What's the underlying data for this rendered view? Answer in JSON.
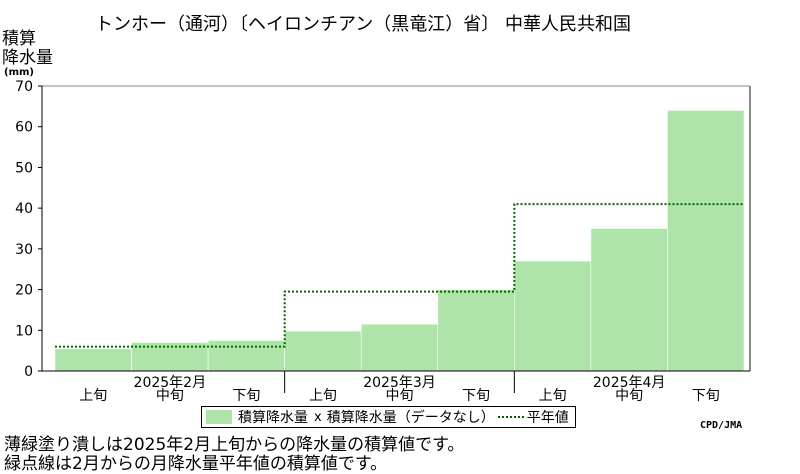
{
  "title": "トンホー（通河）〔ヘイロンチアン（黒竜江）省〕 中華人民共和国",
  "ylabel_line1": "積算",
  "ylabel_line2": "降水量",
  "yunit": "(mm)",
  "legend": {
    "observed": "積算降水量",
    "missing": "積算降水量（データなし）",
    "normal": "平年値"
  },
  "credit": "CPD/JMA",
  "notes": [
    "薄緑塗り潰しは2025年2月上旬からの降水量の積算値です。",
    "緑点線は2月からの月降水量平年値の積算値です。"
  ],
  "colors": {
    "fill": "#aee3aa",
    "fill_edge": "#ffffff",
    "normal_line": "#006400",
    "axis": "#000000",
    "frame": "#888888"
  },
  "chart_data": {
    "type": "area",
    "periods": [
      "2025年2月上旬",
      "2025年2月中旬",
      "2025年2月下旬",
      "2025年3月上旬",
      "2025年3月中旬",
      "2025年3月下旬",
      "2025年4月上旬",
      "2025年4月中旬",
      "2025年4月下旬"
    ],
    "period_labels": [
      "上旬",
      "中旬",
      "下旬",
      "上旬",
      "中旬",
      "下旬",
      "上旬",
      "中旬",
      "下旬"
    ],
    "months": [
      "2025年2月",
      "2025年3月",
      "2025年4月"
    ],
    "series": [
      {
        "name": "積算降水量",
        "values": [
          5.5,
          7.0,
          7.5,
          9.8,
          11.5,
          20.0,
          27.0,
          35.0,
          64.0
        ]
      },
      {
        "name": "平年値",
        "values": [
          6.0,
          6.0,
          6.0,
          19.5,
          19.5,
          19.5,
          41.0,
          41.0,
          41.0
        ]
      }
    ],
    "ylim": [
      0,
      70
    ],
    "yticks": [
      0,
      10,
      20,
      30,
      40,
      50,
      60,
      70
    ],
    "grid": false,
    "legend_position": "bottom"
  }
}
